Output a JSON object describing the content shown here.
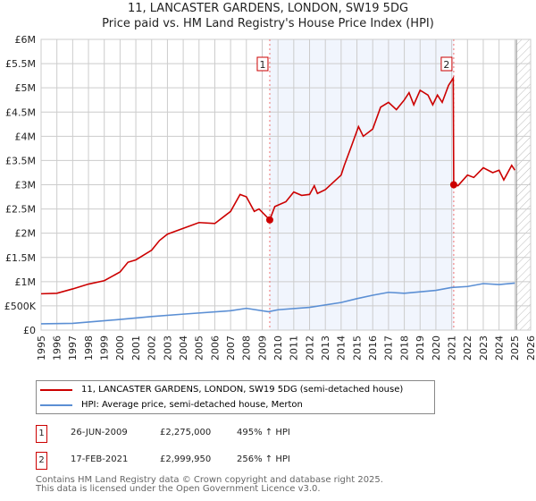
{
  "chart_data": {
    "type": "line",
    "title": "11, LANCASTER GARDENS, LONDON, SW19 5DG",
    "subtitle": "Price paid vs. HM Land Registry's House Price Index (HPI)",
    "xlim": [
      1995,
      2026
    ],
    "ylim": [
      0,
      6000000
    ],
    "x_ticks": [
      "1995",
      "1996",
      "1997",
      "1998",
      "1999",
      "2000",
      "2001",
      "2002",
      "2003",
      "2004",
      "2005",
      "2006",
      "2007",
      "2008",
      "2009",
      "2010",
      "2011",
      "2012",
      "2013",
      "2014",
      "2015",
      "2016",
      "2017",
      "2018",
      "2019",
      "2020",
      "2021",
      "2022",
      "2023",
      "2024",
      "2025",
      "2026"
    ],
    "y_ticks": [
      {
        "v": 0,
        "label": "£0"
      },
      {
        "v": 500000,
        "label": "£500K"
      },
      {
        "v": 1000000,
        "label": "£1M"
      },
      {
        "v": 1500000,
        "label": "£1.5M"
      },
      {
        "v": 2000000,
        "label": "£2M"
      },
      {
        "v": 2500000,
        "label": "£2.5M"
      },
      {
        "v": 3000000,
        "label": "£3M"
      },
      {
        "v": 3500000,
        "label": "£3.5M"
      },
      {
        "v": 4000000,
        "label": "£4M"
      },
      {
        "v": 4500000,
        "label": "£4.5M"
      },
      {
        "v": 5000000,
        "label": "£5M"
      },
      {
        "v": 5500000,
        "label": "£5.5M"
      },
      {
        "v": 6000000,
        "label": "£6M"
      }
    ],
    "grid": true,
    "shaded_range": [
      2009.48,
      2021.13
    ],
    "hatched_from": 2025.1,
    "series": [
      {
        "name": "11, LANCASTER GARDENS, LONDON, SW19 5DG (semi-detached house)",
        "color": "#cc0000",
        "points": [
          [
            1995,
            750000
          ],
          [
            1996,
            760000
          ],
          [
            1997,
            850000
          ],
          [
            1998,
            950000
          ],
          [
            1999,
            1020000
          ],
          [
            2000,
            1200000
          ],
          [
            2000.5,
            1400000
          ],
          [
            2001,
            1450000
          ],
          [
            2002,
            1650000
          ],
          [
            2002.5,
            1850000
          ],
          [
            2003,
            1980000
          ],
          [
            2004,
            2100000
          ],
          [
            2005,
            2220000
          ],
          [
            2006,
            2200000
          ],
          [
            2007,
            2450000
          ],
          [
            2007.6,
            2800000
          ],
          [
            2008,
            2750000
          ],
          [
            2008.5,
            2450000
          ],
          [
            2008.8,
            2500000
          ],
          [
            2009.48,
            2275000
          ],
          [
            2009.8,
            2550000
          ],
          [
            2010.5,
            2650000
          ],
          [
            2011,
            2850000
          ],
          [
            2011.5,
            2780000
          ],
          [
            2012,
            2800000
          ],
          [
            2012.3,
            2980000
          ],
          [
            2012.5,
            2820000
          ],
          [
            2013,
            2900000
          ],
          [
            2013.5,
            3050000
          ],
          [
            2014,
            3200000
          ],
          [
            2014.2,
            3400000
          ],
          [
            2014.6,
            3750000
          ],
          [
            2015.1,
            4200000
          ],
          [
            2015.4,
            4000000
          ],
          [
            2016,
            4150000
          ],
          [
            2016.5,
            4600000
          ],
          [
            2017,
            4700000
          ],
          [
            2017.5,
            4550000
          ],
          [
            2018,
            4750000
          ],
          [
            2018.3,
            4900000
          ],
          [
            2018.6,
            4650000
          ],
          [
            2019,
            4950000
          ],
          [
            2019.5,
            4850000
          ],
          [
            2019.8,
            4650000
          ],
          [
            2020.1,
            4850000
          ],
          [
            2020.4,
            4700000
          ],
          [
            2020.8,
            5050000
          ],
          [
            2021.1,
            5200000
          ],
          [
            2021.13,
            2999950
          ],
          [
            2021.4,
            2980000
          ],
          [
            2022,
            3200000
          ],
          [
            2022.4,
            3150000
          ],
          [
            2023,
            3350000
          ],
          [
            2023.6,
            3250000
          ],
          [
            2024,
            3300000
          ],
          [
            2024.3,
            3100000
          ],
          [
            2024.8,
            3400000
          ],
          [
            2025,
            3300000
          ]
        ]
      },
      {
        "name": "HPI: Average price, semi-detached house, Merton",
        "color": "#5b8fd4",
        "points": [
          [
            1995,
            130000
          ],
          [
            1997,
            140000
          ],
          [
            2000,
            220000
          ],
          [
            2002,
            280000
          ],
          [
            2004,
            330000
          ],
          [
            2007,
            400000
          ],
          [
            2008,
            450000
          ],
          [
            2009.4,
            380000
          ],
          [
            2010,
            420000
          ],
          [
            2012,
            470000
          ],
          [
            2014,
            570000
          ],
          [
            2015,
            650000
          ],
          [
            2016,
            720000
          ],
          [
            2017,
            780000
          ],
          [
            2018,
            760000
          ],
          [
            2019,
            790000
          ],
          [
            2020,
            820000
          ],
          [
            2021,
            880000
          ],
          [
            2022,
            900000
          ],
          [
            2023,
            960000
          ],
          [
            2024,
            940000
          ],
          [
            2025,
            970000
          ]
        ]
      }
    ],
    "sales": [
      {
        "label": "1",
        "x": 2009.48,
        "y": 2275000
      },
      {
        "label": "2",
        "x": 2021.13,
        "y": 2999950
      }
    ]
  },
  "legend": {
    "red": "11, LANCASTER GARDENS, LONDON, SW19 5DG (semi-detached house)",
    "blue": "HPI: Average price, semi-detached house, Merton"
  },
  "transactions": [
    {
      "num": "1",
      "date": "26-JUN-2009",
      "price": "£2,275,000",
      "hpi": "495% ↑ HPI"
    },
    {
      "num": "2",
      "date": "17-FEB-2021",
      "price": "£2,999,950",
      "hpi": "256% ↑ HPI"
    }
  ],
  "footer": {
    "line1": "Contains HM Land Registry data © Crown copyright and database right 2025.",
    "line2": "This data is licensed under the Open Government Licence v3.0."
  }
}
